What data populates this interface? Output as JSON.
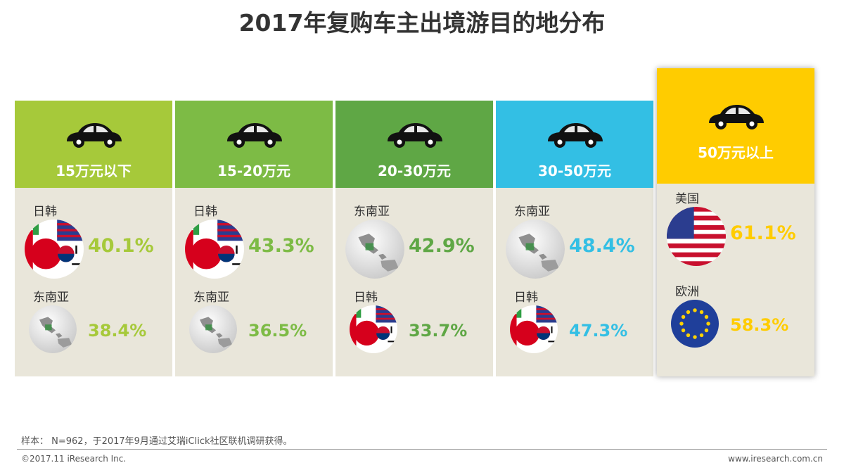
{
  "title": "2017年复购车主出境游目的地分布",
  "chart_data": {
    "type": "table",
    "title": "2017年复购车主出境游目的地分布",
    "columns": [
      {
        "label": "15万元以下",
        "color": "#a6c93a",
        "entries": [
          {
            "destination": "日韩",
            "value": 40.1,
            "value_text": "40.1%",
            "icon": "japan-korea-flags-icon"
          },
          {
            "destination": "东南亚",
            "value": 38.4,
            "value_text": "38.4%",
            "icon": "southeast-asia-globe-icon"
          }
        ]
      },
      {
        "label": "15-20万元",
        "color": "#7dbb45",
        "entries": [
          {
            "destination": "日韩",
            "value": 43.3,
            "value_text": "43.3%",
            "icon": "japan-korea-flags-icon"
          },
          {
            "destination": "东南亚",
            "value": 36.5,
            "value_text": "36.5%",
            "icon": "southeast-asia-globe-icon"
          }
        ]
      },
      {
        "label": "20-30万元",
        "color": "#5fa745",
        "entries": [
          {
            "destination": "东南亚",
            "value": 42.9,
            "value_text": "42.9%",
            "icon": "southeast-asia-globe-icon"
          },
          {
            "destination": "日韩",
            "value": 33.7,
            "value_text": "33.7%",
            "icon": "japan-korea-flags-icon"
          }
        ]
      },
      {
        "label": "30-50万元",
        "color": "#33bfe4",
        "entries": [
          {
            "destination": "东南亚",
            "value": 48.4,
            "value_text": "48.4%",
            "icon": "southeast-asia-globe-icon"
          },
          {
            "destination": "日韩",
            "value": 47.3,
            "value_text": "47.3%",
            "icon": "japan-korea-flags-icon"
          }
        ]
      },
      {
        "label": "50万元以上",
        "color": "#ffcc00",
        "highlight": true,
        "entries": [
          {
            "destination": "美国",
            "value": 61.1,
            "value_text": "61.1%",
            "icon": "usa-flag-icon"
          },
          {
            "destination": "欧洲",
            "value": 58.3,
            "value_text": "58.3%",
            "icon": "eu-flag-icon"
          }
        ]
      }
    ]
  },
  "footnote": "样本： N=962，于2017年9月通过艾瑞iClick社区联机调研获得。",
  "copyright": "©2017.11 iResearch Inc.",
  "website": "www.iresearch.com.cn"
}
